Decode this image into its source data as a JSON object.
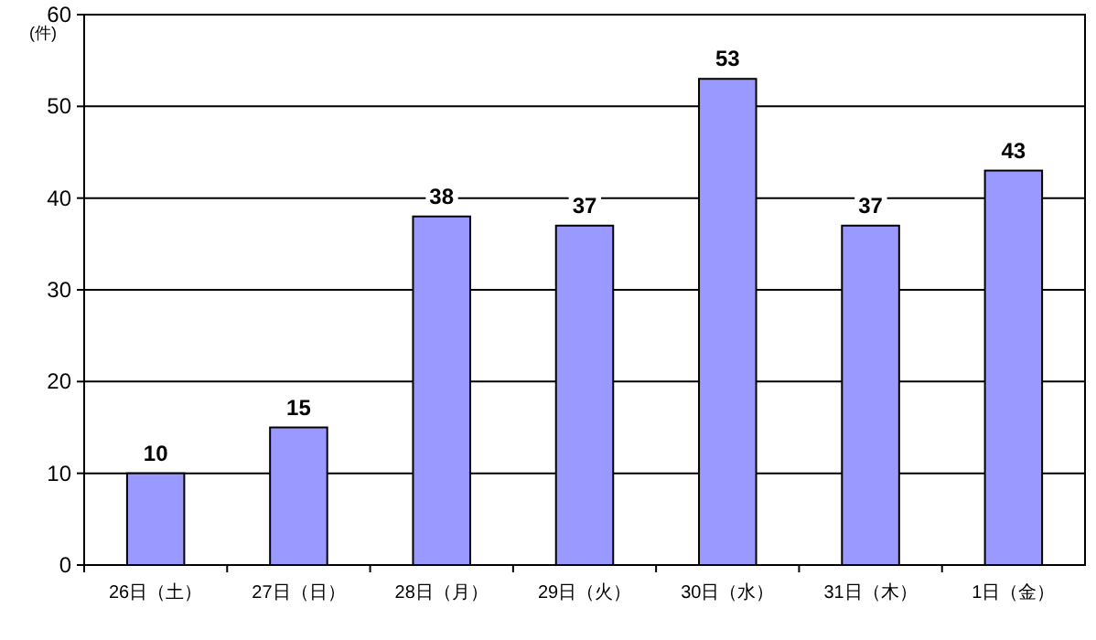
{
  "chart_data": {
    "type": "bar",
    "ylabel": "(件)",
    "categories": [
      "26日（土）",
      "27日（日）",
      "28日（月）",
      "29日（火）",
      "30日（水）",
      "31日（木）",
      "1日（金）"
    ],
    "values": [
      10,
      15,
      38,
      37,
      53,
      37,
      43
    ],
    "color": "#9999ff",
    "ylim": [
      0,
      60
    ],
    "yticks": [
      0,
      10,
      20,
      30,
      40,
      50,
      60
    ],
    "grid": "y",
    "data_labels": true
  }
}
